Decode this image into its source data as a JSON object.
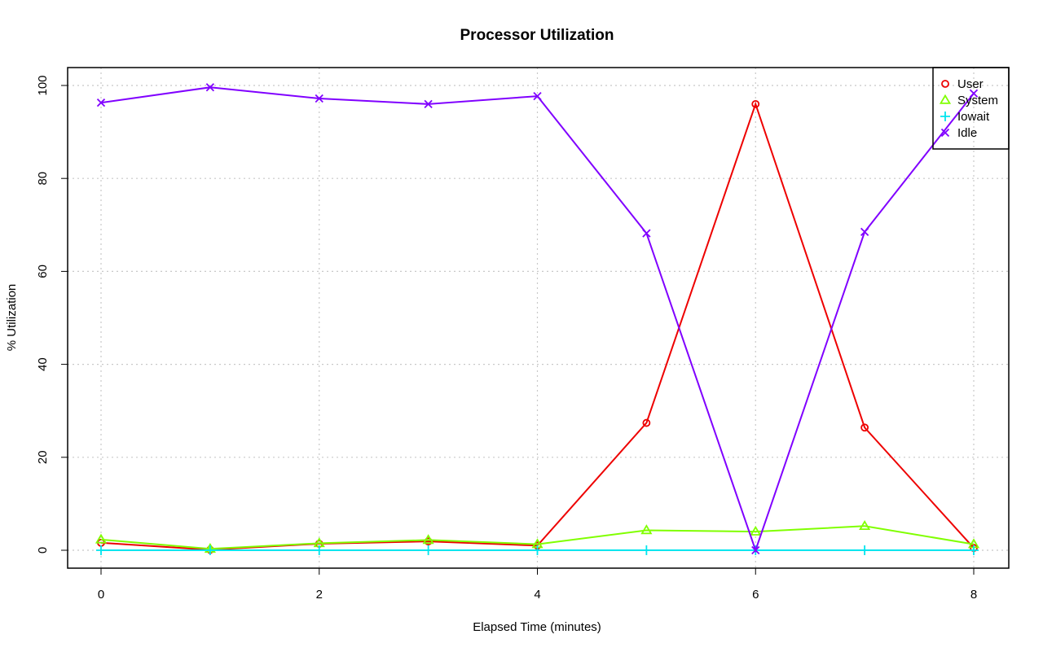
{
  "chart_data": {
    "type": "line",
    "title": "Processor Utilization",
    "xlabel": "Elapsed Time (minutes)",
    "ylabel": "% Utilization",
    "x": [
      0,
      1,
      2,
      3,
      4,
      5,
      6,
      7,
      8
    ],
    "xlim": [
      0,
      8
    ],
    "ylim": [
      0,
      100
    ],
    "x_ticks": [
      0,
      2,
      4,
      6,
      8
    ],
    "y_ticks": [
      0,
      20,
      40,
      60,
      80,
      100
    ],
    "grid": true,
    "legend_position": "top-right",
    "series": [
      {
        "name": "User",
        "color": "#ee0000",
        "marker": "circle",
        "values": [
          1.6,
          0.1,
          1.4,
          1.9,
          1.0,
          27.4,
          96.0,
          26.4,
          0.5
        ]
      },
      {
        "name": "System",
        "color": "#80ff00",
        "marker": "triangle",
        "values": [
          2.3,
          0.3,
          1.5,
          2.2,
          1.3,
          4.3,
          4.0,
          5.2,
          1.3
        ]
      },
      {
        "name": "Iowait",
        "color": "#00e5ee",
        "marker": "plus",
        "values": [
          0.0,
          0.0,
          0.0,
          0.0,
          0.0,
          0.0,
          0.0,
          0.0,
          0.0
        ]
      },
      {
        "name": "Idle",
        "color": "#8000ff",
        "marker": "cross",
        "values": [
          96.3,
          99.6,
          97.2,
          96.0,
          97.7,
          68.2,
          0.0,
          68.5,
          98.3
        ]
      }
    ]
  }
}
